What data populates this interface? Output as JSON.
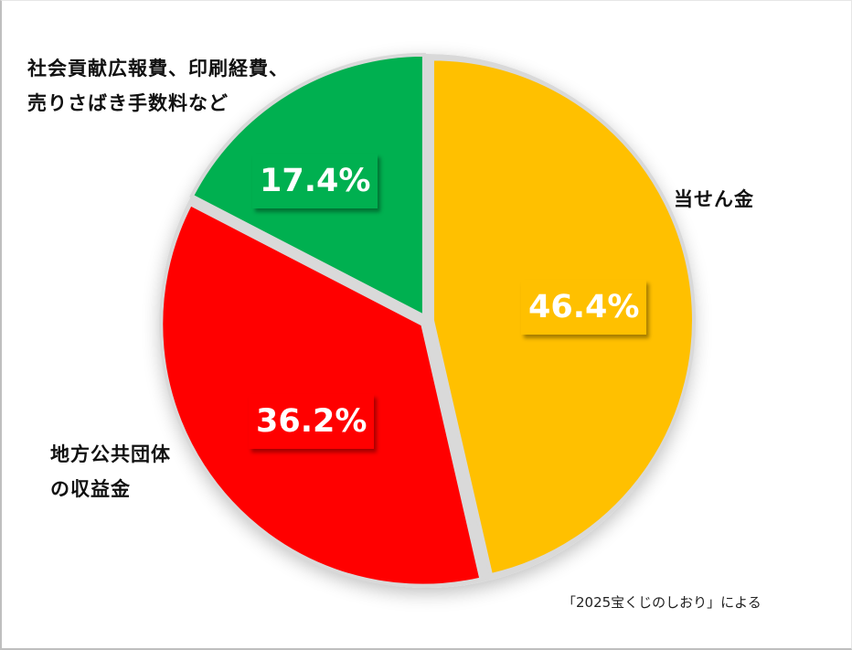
{
  "chart_data": {
    "type": "pie",
    "title": "",
    "start_angle_deg": 0,
    "direction": "clockwise",
    "exploded": true,
    "categories": [
      "当せん金",
      "地方公共団体の収益金",
      "社会貢献広報費、印刷経費、売りさばき手数料など"
    ],
    "values": [
      46.4,
      36.2,
      17.4
    ],
    "unit": "%",
    "colors": [
      "#FFC000",
      "#FF0000",
      "#00B050"
    ],
    "data_labels": [
      "46.4%",
      "36.2%",
      "17.4%"
    ],
    "legend": "none (category labels placed beside slices)",
    "annotation": "「2025宝くじのしおり」による"
  },
  "labels": {
    "prize": "当せん金",
    "local_gov_line1": "地方公共団体",
    "local_gov_line2": "の収益金",
    "other_line1": "社会貢献広報費、印刷経費、",
    "other_line2": "売りさばき手数料など"
  },
  "percentages": {
    "prize": "46.4%",
    "local_gov": "36.2%",
    "other": "17.4%"
  },
  "source": "「2025宝くじのしおり」による",
  "colors": {
    "prize": "#FFC000",
    "local_gov": "#FF0000",
    "other": "#00B050",
    "gap": "#D9D9D9"
  }
}
